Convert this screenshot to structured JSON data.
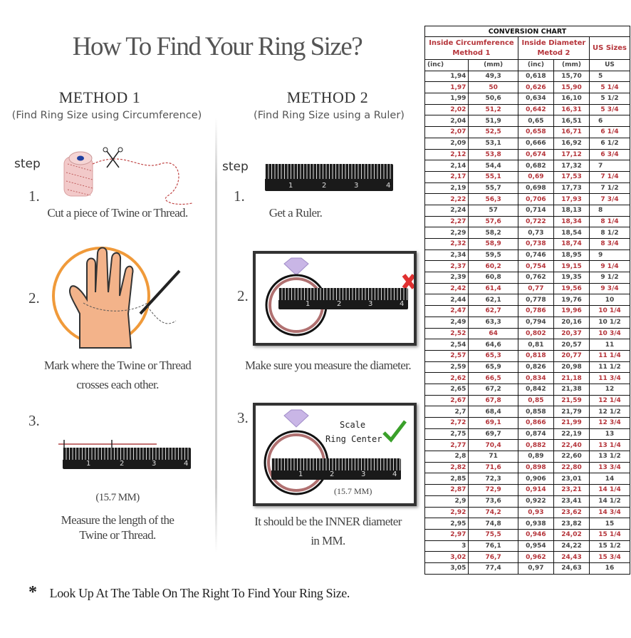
{
  "title": "How To Find Your Ring Size?",
  "method1": {
    "heading": "METHOD 1",
    "subtitle": "(Find Ring Size using Circumference)",
    "step_label": "step",
    "steps": [
      {
        "num": "1.",
        "lines": [
          "Cut a piece of  Twine or Thread."
        ]
      },
      {
        "num": "2.",
        "lines": [
          "Mark where the Twine or Thread",
          "crosses each other."
        ]
      },
      {
        "num": "3.",
        "lines": [
          "Measure the length of the",
          "Twine or Thread."
        ],
        "measure": "(15.7 MM)"
      }
    ]
  },
  "method2": {
    "heading": "METHOD 2",
    "subtitle": "(Find Ring Size using a Ruler)",
    "step_label": "step",
    "steps": [
      {
        "num": "1.",
        "lines": [
          "Get a Ruler."
        ]
      },
      {
        "num": "2.",
        "lines": [
          "Make sure you measure the diameter."
        ]
      },
      {
        "num": "3.",
        "lines": [
          "It should be the INNER diameter",
          "in MM."
        ],
        "measure": "(15.7 MM)",
        "scale_label": "Scale",
        "center_label": "Ring Center"
      }
    ]
  },
  "ruler_numbers": [
    "1",
    "2",
    "3",
    "4"
  ],
  "footer": {
    "asterisk": "*",
    "text": "Look Up At The Table On The Right To Find Your Ring Size."
  },
  "colors": {
    "highlight_red": "#b5343a",
    "wrong_x": "#e03030",
    "check_green": "#3aa02a"
  },
  "table": {
    "title": "CONVERSION CHART",
    "group1": [
      "Inside Circumference",
      "Method 1"
    ],
    "group2": [
      "Inside Diameter",
      "Metod 2"
    ],
    "group3": "US Sizes",
    "units": [
      "(inc)",
      "(mm)",
      "(inc)",
      "(mm)",
      "US"
    ],
    "rows": [
      [
        "1,94",
        "49,3",
        "0,618",
        "15,70",
        "5"
      ],
      [
        "1,97",
        "50",
        "0,626",
        "15,90",
        "5 1/4"
      ],
      [
        "1,99",
        "50,6",
        "0,634",
        "16,10",
        "5 1/2"
      ],
      [
        "2,02",
        "51,2",
        "0,642",
        "16,31",
        "5 3/4"
      ],
      [
        "2,04",
        "51,9",
        "0,65",
        "16,51",
        "6"
      ],
      [
        "2,07",
        "52,5",
        "0,658",
        "16,71",
        "6 1/4"
      ],
      [
        "2,09",
        "53,1",
        "0,666",
        "16,92",
        "6 1/2"
      ],
      [
        "2,12",
        "53,8",
        "0,674",
        "17,12",
        "6 3/4"
      ],
      [
        "2,14",
        "54,4",
        "0,682",
        "17,32",
        "7"
      ],
      [
        "2,17",
        "55,1",
        "0,69",
        "17,53",
        "7 1/4"
      ],
      [
        "2,19",
        "55,7",
        "0,698",
        "17,73",
        "7 1/2"
      ],
      [
        "2,22",
        "56,3",
        "0,706",
        "17,93",
        "7 3/4"
      ],
      [
        "2,24",
        "57",
        "0,714",
        "18,13",
        "8"
      ],
      [
        "2,27",
        "57,6",
        "0,722",
        "18,34",
        "8 1/4"
      ],
      [
        "2,29",
        "58,2",
        "0,73",
        "18,54",
        "8 1/2"
      ],
      [
        "2,32",
        "58,9",
        "0,738",
        "18,74",
        "8 3/4"
      ],
      [
        "2,34",
        "59,5",
        "0,746",
        "18,95",
        "9"
      ],
      [
        "2,37",
        "60,2",
        "0,754",
        "19,15",
        "9 1/4"
      ],
      [
        "2,39",
        "60,8",
        "0,762",
        "19,35",
        "9 1/2"
      ],
      [
        "2,42",
        "61,4",
        "0,77",
        "19,56",
        "9 3/4"
      ],
      [
        "2,44",
        "62,1",
        "0,778",
        "19,76",
        "10"
      ],
      [
        "2,47",
        "62,7",
        "0,786",
        "19,96",
        "10 1/4"
      ],
      [
        "2,49",
        "63,3",
        "0,794",
        "20,16",
        "10 1/2"
      ],
      [
        "2,52",
        "64",
        "0,802",
        "20,37",
        "10 3/4"
      ],
      [
        "2,54",
        "64,6",
        "0,81",
        "20,57",
        "11"
      ],
      [
        "2,57",
        "65,3",
        "0,818",
        "20,77",
        "11 1/4"
      ],
      [
        "2,59",
        "65,9",
        "0,826",
        "20,98",
        "11 1/2"
      ],
      [
        "2,62",
        "66,5",
        "0,834",
        "21,18",
        "11 3/4"
      ],
      [
        "2,65",
        "67,2",
        "0,842",
        "21,38",
        "12"
      ],
      [
        "2,67",
        "67,8",
        "0,85",
        "21,59",
        "12 1/4"
      ],
      [
        "2,7",
        "68,4",
        "0,858",
        "21,79",
        "12 1/2"
      ],
      [
        "2,72",
        "69,1",
        "0,866",
        "21,99",
        "12 3/4"
      ],
      [
        "2,75",
        "69,7",
        "0,874",
        "22,19",
        "13"
      ],
      [
        "2,77",
        "70,4",
        "0,882",
        "22,40",
        "13 1/4"
      ],
      [
        "2,8",
        "71",
        "0,89",
        "22,60",
        "13 1/2"
      ],
      [
        "2,82",
        "71,6",
        "0,898",
        "22,80",
        "13 3/4"
      ],
      [
        "2,85",
        "72,3",
        "0,906",
        "23,01",
        "14"
      ],
      [
        "2,87",
        "72,9",
        "0,914",
        "23,21",
        "14 1/4"
      ],
      [
        "2,9",
        "73,6",
        "0,922",
        "23,41",
        "14 1/2"
      ],
      [
        "2,92",
        "74,2",
        "0,93",
        "23,62",
        "14 3/4"
      ],
      [
        "2,95",
        "74,8",
        "0,938",
        "23,82",
        "15"
      ],
      [
        "2,97",
        "75,5",
        "0,946",
        "24,02",
        "15 1/4"
      ],
      [
        "3",
        "76,1",
        "0,954",
        "24,22",
        "15 1/2"
      ],
      [
        "3,02",
        "76,7",
        "0,962",
        "24,43",
        "15 3/4"
      ],
      [
        "3,05",
        "77,4",
        "0,97",
        "24,63",
        "16"
      ]
    ]
  }
}
